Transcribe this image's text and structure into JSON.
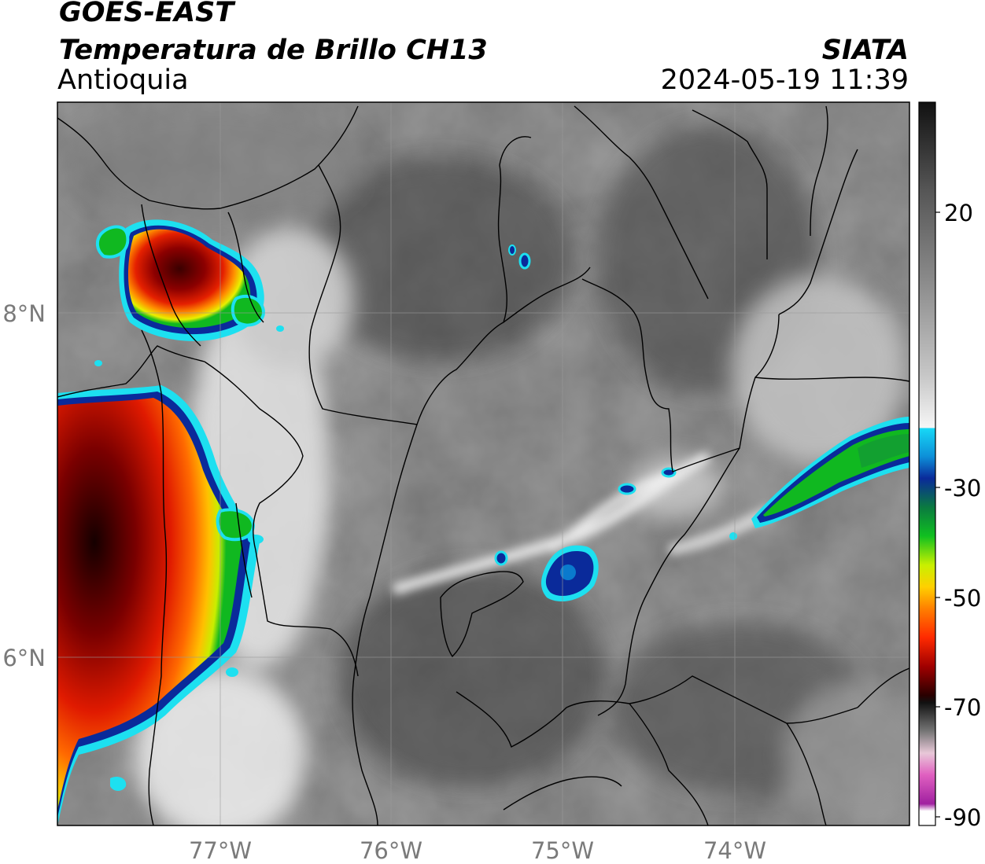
{
  "header": {
    "satellite": "GOES-EAST",
    "product": "Temperatura de Brillo CH13",
    "region": "Antioquia",
    "agency": "SIATA",
    "timestamp": "2024-05-19 11:39"
  },
  "axes": {
    "lon_ticks": [
      "77°W",
      "76°W",
      "75°W",
      "74°W"
    ],
    "lat_ticks": [
      "8°N",
      "6°N"
    ]
  },
  "colorbar": {
    "tick_labels": [
      "20",
      "-30",
      "-50",
      "-70",
      "-90"
    ],
    "range": [
      -90,
      30
    ]
  },
  "colors": {
    "gray_ramp_warm": "#1a1a1a",
    "gray_ramp_cold": "#f5f5f5",
    "cyan": "#17c8ea",
    "blue": "#0a2a9a",
    "green": "#10b820",
    "yellow": "#f2f200",
    "orange": "#ff8c00",
    "red": "#e61c00",
    "dark_red": "#5a0000",
    "magenta": "#c043b8"
  }
}
